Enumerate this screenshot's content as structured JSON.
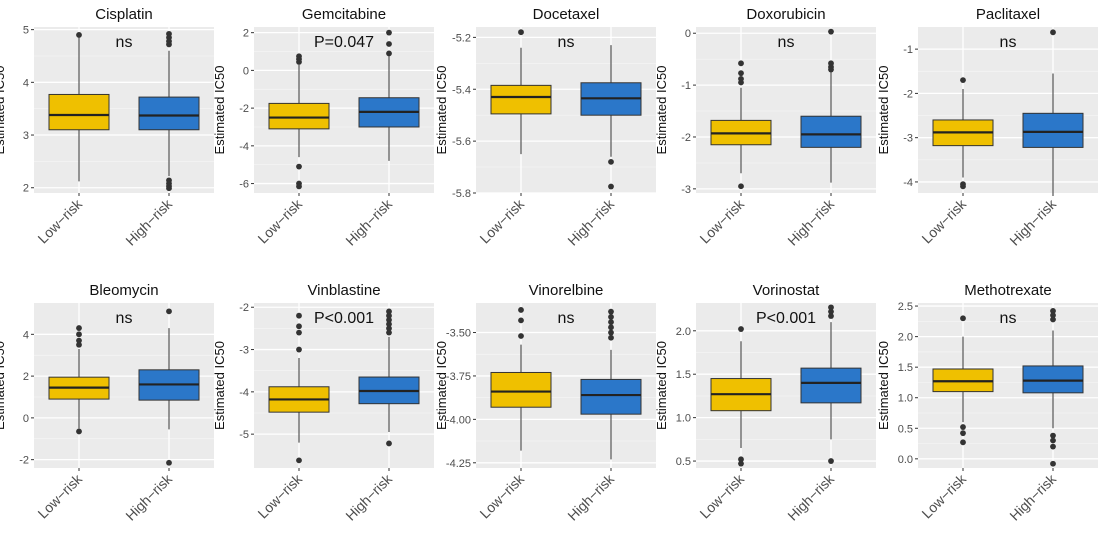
{
  "chart_data": [
    {
      "type": "box",
      "title": "Cisplatin",
      "ylabel": "Estimated IC50",
      "categories": [
        "Low−risk",
        "High−risk"
      ],
      "annotation": "ns",
      "ylim": [
        1.9,
        5.05
      ],
      "yticks": [
        2,
        3,
        4,
        5
      ],
      "ytick_labels": [
        "2",
        "3",
        "4",
        "5"
      ],
      "colors": [
        "#EFC000",
        "#2B77C9"
      ],
      "series": [
        {
          "category": "Low−risk",
          "whisker_low": 2.12,
          "q1": 3.1,
          "median": 3.38,
          "q3": 3.77,
          "whisker_high": 4.88,
          "outliers": [
            4.9
          ]
        },
        {
          "category": "High−risk",
          "whisker_low": 2.22,
          "q1": 3.1,
          "median": 3.37,
          "q3": 3.72,
          "whisker_high": 4.6,
          "outliers": [
            4.92,
            4.85,
            4.78,
            4.72,
            2.14,
            2.08,
            2.03,
            1.99
          ]
        }
      ]
    },
    {
      "type": "box",
      "title": "Gemcitabine",
      "ylabel": "Estimated IC50",
      "categories": [
        "Low−risk",
        "High−risk"
      ],
      "annotation": "P=0.047",
      "ylim": [
        -6.5,
        2.3
      ],
      "yticks": [
        -6,
        -4,
        -2,
        0,
        2
      ],
      "ytick_labels": [
        "-6",
        "-4",
        "-2",
        "0",
        "2"
      ],
      "colors": [
        "#EFC000",
        "#2B77C9"
      ],
      "series": [
        {
          "category": "Low−risk",
          "whisker_low": -4.6,
          "q1": -3.1,
          "median": -2.5,
          "q3": -1.75,
          "whisker_high": 0.3,
          "outliers": [
            0.75,
            0.6,
            0.45,
            -5.1,
            -6.0,
            -6.15
          ]
        },
        {
          "category": "High−risk",
          "whisker_low": -4.8,
          "q1": -3.0,
          "median": -2.2,
          "q3": -1.45,
          "whisker_high": 0.8,
          "outliers": [
            2.0,
            1.4,
            0.9
          ]
        }
      ]
    },
    {
      "type": "box",
      "title": "Docetaxel",
      "ylabel": "Estimated IC50",
      "categories": [
        "Low−risk",
        "High−risk"
      ],
      "annotation": "ns",
      "ylim": [
        -5.8,
        -5.16
      ],
      "yticks": [
        -5.8,
        -5.6,
        -5.4,
        -5.2
      ],
      "ytick_labels": [
        "-5.8",
        "-5.6",
        "-5.4",
        "-5.2"
      ],
      "colors": [
        "#EFC000",
        "#2B77C9"
      ],
      "series": [
        {
          "category": "Low−risk",
          "whisker_low": -5.65,
          "q1": -5.495,
          "median": -5.43,
          "q3": -5.385,
          "whisker_high": -5.24,
          "outliers": [
            -5.18
          ]
        },
        {
          "category": "High−risk",
          "whisker_low": -5.66,
          "q1": -5.5,
          "median": -5.435,
          "q3": -5.375,
          "whisker_high": -5.23,
          "outliers": [
            -5.68,
            -5.775
          ]
        }
      ]
    },
    {
      "type": "box",
      "title": "Doxorubicin",
      "ylabel": "Estimated IC50",
      "categories": [
        "Low−risk",
        "High−risk"
      ],
      "annotation": "ns",
      "ylim": [
        -3.08,
        0.12
      ],
      "yticks": [
        -3,
        -2,
        -1,
        0
      ],
      "ytick_labels": [
        "-3",
        "-2",
        "-1",
        "0"
      ],
      "colors": [
        "#EFC000",
        "#2B77C9"
      ],
      "series": [
        {
          "category": "Low−risk",
          "whisker_low": -2.7,
          "q1": -2.15,
          "median": -1.93,
          "q3": -1.68,
          "whisker_high": -1.05,
          "outliers": [
            -0.58,
            -0.77,
            -0.88,
            -0.95,
            -2.95
          ]
        },
        {
          "category": "High−risk",
          "whisker_low": -2.88,
          "q1": -2.2,
          "median": -1.95,
          "q3": -1.6,
          "whisker_high": -0.75,
          "outliers": [
            0.03,
            -0.58,
            -0.65,
            -0.7
          ]
        }
      ]
    },
    {
      "type": "box",
      "title": "Paclitaxel",
      "ylabel": "Estimated IC50",
      "categories": [
        "Low−risk",
        "High−risk"
      ],
      "annotation": "ns",
      "ylim": [
        -4.25,
        -0.5
      ],
      "yticks": [
        -4,
        -3,
        -2,
        -1
      ],
      "ytick_labels": [
        "-4",
        "-3",
        "-2",
        "-1"
      ],
      "colors": [
        "#EFC000",
        "#2B77C9"
      ],
      "series": [
        {
          "category": "Low−risk",
          "whisker_low": -3.9,
          "q1": -3.18,
          "median": -2.88,
          "q3": -2.6,
          "whisker_high": -1.9,
          "outliers": [
            -1.7,
            -4.05,
            -4.1
          ]
        },
        {
          "category": "High−risk",
          "whisker_low": -4.25,
          "q1": -3.22,
          "median": -2.87,
          "q3": -2.45,
          "whisker_high": -1.55,
          "outliers": [
            -0.62
          ]
        }
      ]
    },
    {
      "type": "box",
      "title": "Bleomycin",
      "ylabel": "Estimated IC50",
      "categories": [
        "Low−risk",
        "High−risk"
      ],
      "annotation": "ns",
      "ylim": [
        -2.4,
        5.5
      ],
      "yticks": [
        -2,
        0,
        2,
        4
      ],
      "ytick_labels": [
        "-2",
        "0",
        "2",
        "4"
      ],
      "colors": [
        "#EFC000",
        "#2B77C9"
      ],
      "series": [
        {
          "category": "Low−risk",
          "whisker_low": -0.5,
          "q1": 0.9,
          "median": 1.45,
          "q3": 1.95,
          "whisker_high": 3.3,
          "outliers": [
            4.3,
            4.0,
            3.7,
            3.5,
            -0.65
          ]
        },
        {
          "category": "High−risk",
          "whisker_low": -0.55,
          "q1": 0.85,
          "median": 1.6,
          "q3": 2.3,
          "whisker_high": 4.3,
          "outliers": [
            5.1,
            -2.15
          ]
        }
      ]
    },
    {
      "type": "box",
      "title": "Vinblastine",
      "ylabel": "Estimated IC50",
      "categories": [
        "Low−risk",
        "High−risk"
      ],
      "annotation": "P<0.001",
      "ylim": [
        -5.8,
        -1.9
      ],
      "yticks": [
        -5,
        -4,
        -3,
        -2
      ],
      "ytick_labels": [
        "-5",
        "-4",
        "-3",
        "-2"
      ],
      "colors": [
        "#EFC000",
        "#2B77C9"
      ],
      "series": [
        {
          "category": "Low−risk",
          "whisker_low": -5.2,
          "q1": -4.48,
          "median": -4.18,
          "q3": -3.88,
          "whisker_high": -3.2,
          "outliers": [
            -2.2,
            -2.45,
            -2.6,
            -3.0,
            -5.62
          ]
        },
        {
          "category": "High−risk",
          "whisker_low": -4.95,
          "q1": -4.28,
          "median": -3.98,
          "q3": -3.65,
          "whisker_high": -2.7,
          "outliers": [
            -2.1,
            -2.2,
            -2.3,
            -2.4,
            -2.5,
            -2.6,
            -5.22
          ]
        }
      ]
    },
    {
      "type": "box",
      "title": "Vinorelbine",
      "ylabel": "Estimated IC50",
      "categories": [
        "Low−risk",
        "High−risk"
      ],
      "annotation": "ns",
      "ylim": [
        -4.28,
        -3.33
      ],
      "yticks": [
        -4.25,
        -4.0,
        -3.75,
        -3.5
      ],
      "ytick_labels": [
        "-4.25",
        "-4.00",
        "-3.75",
        "-3.50"
      ],
      "colors": [
        "#EFC000",
        "#2B77C9"
      ],
      "series": [
        {
          "category": "Low−risk",
          "whisker_low": -4.18,
          "q1": -3.93,
          "median": -3.84,
          "q3": -3.73,
          "whisker_high": -3.57,
          "outliers": [
            -3.37,
            -3.43,
            -3.52
          ]
        },
        {
          "category": "High−risk",
          "whisker_low": -4.23,
          "q1": -3.97,
          "median": -3.86,
          "q3": -3.77,
          "whisker_high": -3.6,
          "outliers": [
            -3.38,
            -3.41,
            -3.44,
            -3.47,
            -3.5,
            -3.53
          ]
        }
      ]
    },
    {
      "type": "box",
      "title": "Vorinostat",
      "ylabel": "Estimated IC50",
      "categories": [
        "Low−risk",
        "High−risk"
      ],
      "annotation": "P<0.001",
      "ylim": [
        0.42,
        2.32
      ],
      "yticks": [
        0.5,
        1.0,
        1.5,
        2.0
      ],
      "ytick_labels": [
        "0.5",
        "1.0",
        "1.5",
        "2.0"
      ],
      "colors": [
        "#EFC000",
        "#2B77C9"
      ],
      "series": [
        {
          "category": "Low−risk",
          "whisker_low": 0.65,
          "q1": 1.08,
          "median": 1.27,
          "q3": 1.45,
          "whisker_high": 1.88,
          "outliers": [
            2.02,
            0.52,
            0.47
          ]
        },
        {
          "category": "High−risk",
          "whisker_low": 0.75,
          "q1": 1.17,
          "median": 1.4,
          "q3": 1.57,
          "whisker_high": 2.1,
          "outliers": [
            2.27,
            2.22,
            2.17,
            0.5
          ]
        }
      ]
    },
    {
      "type": "box",
      "title": "Methotrexate",
      "ylabel": "Estimated IC50",
      "categories": [
        "Low−risk",
        "High−risk"
      ],
      "annotation": "ns",
      "ylim": [
        -0.15,
        2.55
      ],
      "yticks": [
        0.0,
        0.5,
        1.0,
        1.5,
        2.0,
        2.5
      ],
      "ytick_labels": [
        "0.0",
        "0.5",
        "1.0",
        "1.5",
        "2.0",
        "2.5"
      ],
      "colors": [
        "#EFC000",
        "#2B77C9"
      ],
      "series": [
        {
          "category": "Low−risk",
          "whisker_low": 0.6,
          "q1": 1.1,
          "median": 1.27,
          "q3": 1.47,
          "whisker_high": 2.0,
          "outliers": [
            2.3,
            0.52,
            0.42,
            0.27
          ]
        },
        {
          "category": "High−risk",
          "whisker_low": 0.5,
          "q1": 1.08,
          "median": 1.28,
          "q3": 1.52,
          "whisker_high": 2.1,
          "outliers": [
            2.42,
            2.35,
            2.28,
            0.38,
            0.3,
            0.2,
            -0.08
          ]
        }
      ]
    }
  ]
}
